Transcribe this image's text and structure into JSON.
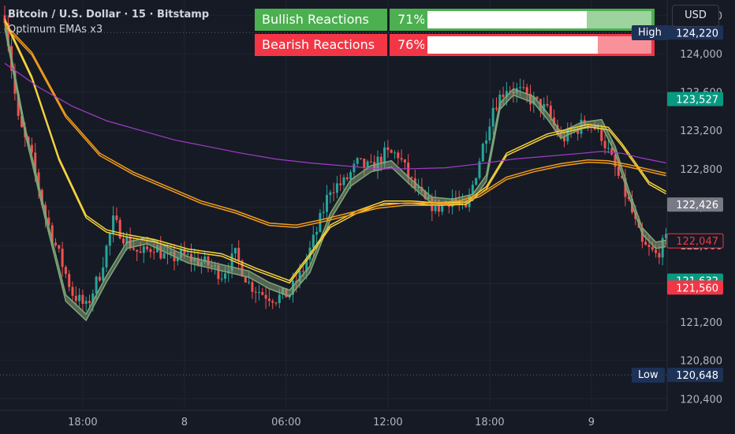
{
  "legend": {
    "symbol": "Bitcoin / U.S. Dollar · 15 · Bitstamp",
    "indicator": "Optimum EMAs x3"
  },
  "currency": "USD",
  "stats": [
    {
      "label": "Bullish Reactions",
      "percent": "71%",
      "fraction": 0.71,
      "color": "#4caf50"
    },
    {
      "label": "Bearish Reactions",
      "percent": "76%",
      "fraction": 0.76,
      "color": "#f23645"
    }
  ],
  "markers": {
    "high_label": "High",
    "high_value": "124,220",
    "low_label": "Low",
    "low_value": "120,648"
  },
  "colors": {
    "up": "#26a69a",
    "down": "#ef5350",
    "ema_fast": "#7da877",
    "ema_mid": "#f5d33b",
    "ema_slow": "#f29c1c",
    "ema_long": "#a13cc6"
  },
  "chart_data": {
    "type": "candlestick",
    "symbol": "BTCUSD",
    "exchange": "Bitstamp",
    "interval": "15",
    "y_range": [
      120320,
      124560
    ],
    "y_ticks": [
      124400,
      124000,
      123600,
      123200,
      122800,
      122400,
      122000,
      121600,
      121200,
      120800,
      120400
    ],
    "y_tick_labels": [
      "124,400",
      "124,000",
      "123,600",
      "123,200",
      "122,800",
      "122,400",
      "122,000",
      "121,600",
      "121,200",
      "120,800",
      "120,400"
    ],
    "x_ticks": [
      "18:00",
      "8",
      "06:00",
      "12:00",
      "18:00",
      "9"
    ],
    "x_tick_index": [
      23,
      53,
      83,
      113,
      143,
      173
    ],
    "high": 124220,
    "low": 120648,
    "price_labels": [
      {
        "value": 123527,
        "text": "123,527",
        "bg": "#089981",
        "fg": "#ffffff",
        "border": ""
      },
      {
        "value": 122426,
        "text": "122,426",
        "bg": "#787b86",
        "fg": "#ffffff",
        "border": ""
      },
      {
        "value": 122047,
        "text": "122,047",
        "bg": "#161a25",
        "fg": "#f23645",
        "border": "#f23645"
      },
      {
        "value": 121632,
        "text": "121,632",
        "bg": "#089981",
        "fg": "#ffffff",
        "border": ""
      },
      {
        "value": 121560,
        "text": "121,560",
        "bg": "#f23645",
        "fg": "#ffffff",
        "border": ""
      }
    ],
    "close_anchors": [
      [
        0,
        124400
      ],
      [
        4,
        123300
      ],
      [
        8,
        122900
      ],
      [
        12,
        122300
      ],
      [
        16,
        121900
      ],
      [
        20,
        121500
      ],
      [
        24,
        121350
      ],
      [
        28,
        121700
      ],
      [
        32,
        122250
      ],
      [
        36,
        122050
      ],
      [
        40,
        121900
      ],
      [
        44,
        122000
      ],
      [
        48,
        121850
      ],
      [
        52,
        121900
      ],
      [
        56,
        121850
      ],
      [
        60,
        121800
      ],
      [
        64,
        121700
      ],
      [
        68,
        121900
      ],
      [
        72,
        121600
      ],
      [
        76,
        121500
      ],
      [
        80,
        121450
      ],
      [
        84,
        121500
      ],
      [
        88,
        121750
      ],
      [
        92,
        122150
      ],
      [
        96,
        122600
      ],
      [
        100,
        122650
      ],
      [
        104,
        122850
      ],
      [
        108,
        122800
      ],
      [
        112,
        122950
      ],
      [
        116,
        122950
      ],
      [
        120,
        122650
      ],
      [
        124,
        122450
      ],
      [
        128,
        122400
      ],
      [
        132,
        122500
      ],
      [
        136,
        122350
      ],
      [
        140,
        122900
      ],
      [
        144,
        123450
      ],
      [
        148,
        123650
      ],
      [
        152,
        123600
      ],
      [
        156,
        123500
      ],
      [
        160,
        123400
      ],
      [
        164,
        123100
      ],
      [
        168,
        123200
      ],
      [
        172,
        123300
      ],
      [
        176,
        123150
      ],
      [
        180,
        122800
      ],
      [
        184,
        122450
      ],
      [
        188,
        122000
      ],
      [
        192,
        121900
      ],
      [
        195,
        122050
      ]
    ],
    "ema_series": [
      {
        "name": "EMA fast",
        "color": "#7da877",
        "points": [
          [
            0,
            124300
          ],
          [
            6,
            123200
          ],
          [
            12,
            122300
          ],
          [
            18,
            121450
          ],
          [
            24,
            121250
          ],
          [
            30,
            121650
          ],
          [
            36,
            122000
          ],
          [
            42,
            122050
          ],
          [
            48,
            121950
          ],
          [
            54,
            121850
          ],
          [
            60,
            121800
          ],
          [
            66,
            121750
          ],
          [
            72,
            121700
          ],
          [
            78,
            121580
          ],
          [
            84,
            121500
          ],
          [
            90,
            121750
          ],
          [
            96,
            122300
          ],
          [
            102,
            122650
          ],
          [
            108,
            122800
          ],
          [
            114,
            122850
          ],
          [
            120,
            122650
          ],
          [
            126,
            122470
          ],
          [
            132,
            122450
          ],
          [
            138,
            122500
          ],
          [
            142,
            122700
          ],
          [
            146,
            123450
          ],
          [
            150,
            123600
          ],
          [
            156,
            123520
          ],
          [
            160,
            123350
          ],
          [
            164,
            123150
          ],
          [
            170,
            123250
          ],
          [
            176,
            123280
          ],
          [
            180,
            123000
          ],
          [
            184,
            122550
          ],
          [
            188,
            122150
          ],
          [
            192,
            122000
          ],
          [
            195,
            122020
          ]
        ]
      },
      {
        "name": "EMA mid",
        "color": "#f5d33b",
        "points": [
          [
            0,
            124350
          ],
          [
            8,
            123750
          ],
          [
            16,
            122900
          ],
          [
            24,
            122300
          ],
          [
            30,
            122150
          ],
          [
            36,
            122100
          ],
          [
            44,
            122050
          ],
          [
            54,
            121950
          ],
          [
            64,
            121900
          ],
          [
            74,
            121750
          ],
          [
            84,
            121620
          ],
          [
            90,
            121900
          ],
          [
            96,
            122200
          ],
          [
            104,
            122350
          ],
          [
            112,
            122450
          ],
          [
            120,
            122450
          ],
          [
            128,
            122430
          ],
          [
            136,
            122440
          ],
          [
            142,
            122600
          ],
          [
            148,
            122950
          ],
          [
            154,
            123050
          ],
          [
            160,
            123150
          ],
          [
            166,
            123200
          ],
          [
            172,
            123250
          ],
          [
            178,
            123220
          ],
          [
            182,
            123050
          ],
          [
            186,
            122850
          ],
          [
            190,
            122650
          ],
          [
            195,
            122550
          ]
        ]
      },
      {
        "name": "EMA slow",
        "color": "#f29c1c",
        "points": [
          [
            0,
            124300
          ],
          [
            8,
            124000
          ],
          [
            18,
            123350
          ],
          [
            28,
            122950
          ],
          [
            38,
            122750
          ],
          [
            48,
            122600
          ],
          [
            58,
            122450
          ],
          [
            68,
            122350
          ],
          [
            78,
            122220
          ],
          [
            86,
            122200
          ],
          [
            94,
            122260
          ],
          [
            102,
            122330
          ],
          [
            110,
            122400
          ],
          [
            118,
            122430
          ],
          [
            126,
            122430
          ],
          [
            134,
            122450
          ],
          [
            140,
            122520
          ],
          [
            148,
            122700
          ],
          [
            156,
            122780
          ],
          [
            164,
            122840
          ],
          [
            172,
            122880
          ],
          [
            178,
            122870
          ],
          [
            184,
            122830
          ],
          [
            190,
            122780
          ],
          [
            195,
            122740
          ]
        ]
      },
      {
        "name": "EMA long",
        "color": "#a13cc6",
        "points": [
          [
            0,
            123900
          ],
          [
            10,
            123650
          ],
          [
            20,
            123450
          ],
          [
            30,
            123300
          ],
          [
            40,
            123200
          ],
          [
            50,
            123100
          ],
          [
            60,
            123030
          ],
          [
            70,
            122960
          ],
          [
            80,
            122900
          ],
          [
            90,
            122860
          ],
          [
            100,
            122830
          ],
          [
            110,
            122800
          ],
          [
            120,
            122800
          ],
          [
            130,
            122810
          ],
          [
            140,
            122850
          ],
          [
            150,
            122900
          ],
          [
            160,
            122930
          ],
          [
            170,
            122960
          ],
          [
            176,
            122980
          ],
          [
            182,
            122960
          ],
          [
            188,
            122910
          ],
          [
            195,
            122860
          ]
        ]
      }
    ]
  }
}
